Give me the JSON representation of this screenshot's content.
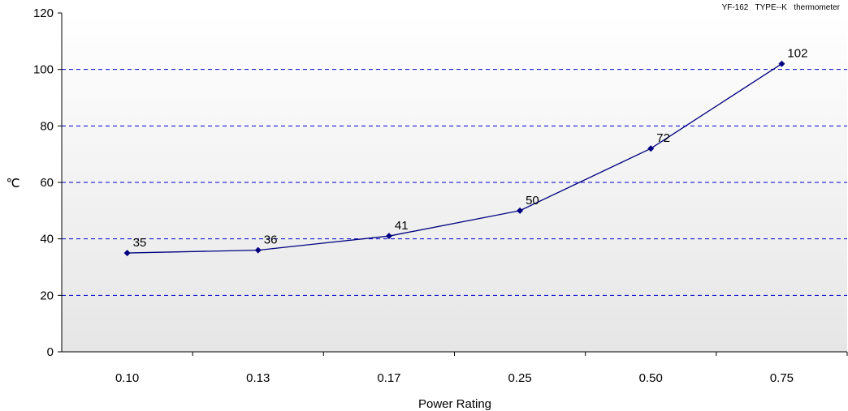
{
  "chart_data": {
    "type": "line",
    "annotation": "YF-162   TYPE--K   thermometer",
    "title": "",
    "xlabel": "Power Rating",
    "ylabel": "℃",
    "categories": [
      "0.10",
      "0.13",
      "0.17",
      "0.25",
      "0.50",
      "0.75"
    ],
    "series": [
      {
        "values": [
          35,
          36,
          41,
          50,
          72,
          102
        ]
      }
    ],
    "ylim": [
      0,
      120
    ],
    "yticks": [
      "0",
      "20",
      "40",
      "60",
      "80",
      "100",
      "120"
    ],
    "grid": "horizontal dashed",
    "legend": "none",
    "colors": {
      "line": "#000080",
      "marker": "#000080",
      "grid": "#0000cc",
      "plot_bg_top": "#ffffff",
      "plot_bg_bottom": "#e6e6e6"
    }
  }
}
